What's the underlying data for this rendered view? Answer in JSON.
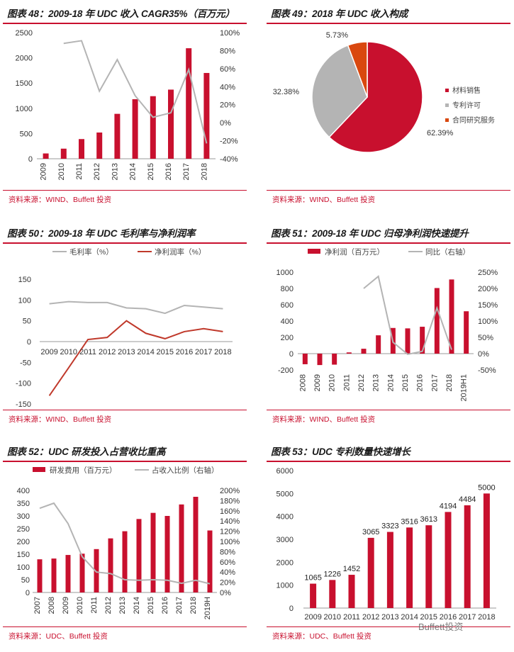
{
  "colors": {
    "red": "#c8102e",
    "gray": "#b4b4b4",
    "orange": "#d9480f",
    "dark_red": "#c0392b"
  },
  "watermark": "Buffett投资",
  "panels": [
    {
      "title": "图表 48：2009-18 年 UDC 收入 CAGR35%（百万元）",
      "source": "资料来源：WIND、Buffett 投资"
    },
    {
      "title": "图表 49：2018 年 UDC 收入构成",
      "source": "资料来源：WIND、Buffett 投资"
    },
    {
      "title": "图表 50：2009-18 年 UDC 毛利率与净利润率",
      "source": "资料来源：WIND、Buffett 投资"
    },
    {
      "title": "图表 51：2009-18 年 UDC 归母净利润快速提升",
      "source": "资料来源：WIND、Buffett 投资"
    },
    {
      "title": "图表 52：UDC 研发投入占营收比重高",
      "source": "资料来源：UDC、Buffett 投资"
    },
    {
      "title": "图表 53：UDC 专利数量快速增长",
      "source": "资料来源：UDC、Buffett 投资"
    }
  ],
  "chart_data": [
    {
      "type": "bar",
      "categories": [
        "2009",
        "2010",
        "2011",
        "2012",
        "2013",
        "2014",
        "2015",
        "2016",
        "2017",
        "2018"
      ],
      "series": [
        {
          "values": [
            105,
            200,
            390,
            520,
            890,
            1180,
            1240,
            1370,
            2190,
            1700
          ],
          "axis": "left"
        },
        {
          "values": [
            null,
            88,
            91,
            35,
            70,
            30,
            6,
            11,
            59,
            -23
          ],
          "axis": "right",
          "kind": "line"
        }
      ],
      "ylim": [
        0,
        2500
      ],
      "yticks": [
        0,
        500,
        1000,
        1500,
        2000,
        2500
      ],
      "y2lim": [
        -40,
        100
      ],
      "y2ticks": [
        "-40%",
        "-20%",
        "0%",
        "20%",
        "40%",
        "60%",
        "80%",
        "100%"
      ],
      "legend": "none"
    },
    {
      "type": "pie",
      "labels": [
        "材料销售",
        "专利许可",
        "合同研究服务"
      ],
      "values": [
        62.39,
        32.38,
        5.73
      ],
      "value_labels": [
        "62.39%",
        "32.38%",
        "5.73%"
      ],
      "legend": "right"
    },
    {
      "type": "line",
      "categories": [
        "2009",
        "2010",
        "2011",
        "2012",
        "2013",
        "2014",
        "2015",
        "2016",
        "2017",
        "2018"
      ],
      "series": [
        {
          "name": "毛利率（%）",
          "values": [
            91,
            96,
            94,
            94,
            81,
            79,
            68,
            87,
            83,
            79
          ]
        },
        {
          "name": "净利润率（%）",
          "values": [
            -130,
            -63,
            5,
            10,
            50,
            20,
            7,
            24,
            31,
            24
          ]
        }
      ],
      "ylim": [
        -150,
        150
      ],
      "yticks": [
        150,
        100,
        50,
        0,
        -50,
        -100,
        -150
      ],
      "legend": "top"
    },
    {
      "type": "bar",
      "categories": [
        "2008",
        "2009",
        "2010",
        "2011",
        "2012",
        "2013",
        "2014",
        "2015",
        "2016",
        "2017",
        "2018",
        "2019H1"
      ],
      "series": [
        {
          "name": "净利润（百万元）",
          "values": [
            -130,
            -140,
            -135,
            15,
            60,
            225,
            315,
            310,
            330,
            805,
            910,
            520
          ],
          "axis": "left"
        },
        {
          "name": "同比（右轴）",
          "values": [
            null,
            null,
            null,
            null,
            200,
            237,
            35,
            -2,
            7,
            140,
            12,
            null
          ],
          "axis": "right",
          "kind": "line"
        }
      ],
      "ylim": [
        -200,
        1000
      ],
      "yticks": [
        -200,
        0,
        200,
        400,
        600,
        800,
        1000
      ],
      "y2lim": [
        -50,
        250
      ],
      "y2ticks": [
        "-50%",
        "0%",
        "50%",
        "100%",
        "150%",
        "200%",
        "250%"
      ],
      "legend": "top"
    },
    {
      "type": "bar",
      "categories": [
        "2007",
        "2008",
        "2009",
        "2010",
        "2011",
        "2012",
        "2013",
        "2014",
        "2015",
        "2016",
        "2017",
        "2018",
        "2019H"
      ],
      "series": [
        {
          "name": "研发费用（百万元）",
          "values": [
            130,
            133,
            147,
            152,
            170,
            212,
            240,
            288,
            312,
            300,
            345,
            375,
            243
          ],
          "axis": "left"
        },
        {
          "name": "占收入比例（右轴）",
          "values": [
            165,
            175,
            135,
            70,
            40,
            37,
            25,
            24,
            25,
            24,
            18,
            24,
            17
          ],
          "axis": "right",
          "kind": "line"
        }
      ],
      "ylim": [
        0,
        400
      ],
      "yticks": [
        0,
        50,
        100,
        150,
        200,
        250,
        300,
        350,
        400
      ],
      "y2lim": [
        0,
        200
      ],
      "y2ticks": [
        "0%",
        "20%",
        "40%",
        "60%",
        "80%",
        "100%",
        "120%",
        "140%",
        "160%",
        "180%",
        "200%"
      ],
      "legend": "top"
    },
    {
      "type": "bar",
      "categories": [
        "2009",
        "2010",
        "2011",
        "2012",
        "2013",
        "2014",
        "2015",
        "2016",
        "2017",
        "2018"
      ],
      "series": [
        {
          "values": [
            1065,
            1226,
            1452,
            3065,
            3323,
            3516,
            3613,
            4194,
            4484,
            5000
          ]
        }
      ],
      "value_labels": [
        "1065",
        "1226",
        "1452",
        "3065",
        "3323",
        "3516",
        "3613",
        "4194",
        "4484",
        "5000"
      ],
      "ylim": [
        0,
        6000
      ],
      "yticks": [
        0,
        1000,
        2000,
        3000,
        4000,
        5000,
        6000
      ],
      "legend": "none"
    }
  ]
}
